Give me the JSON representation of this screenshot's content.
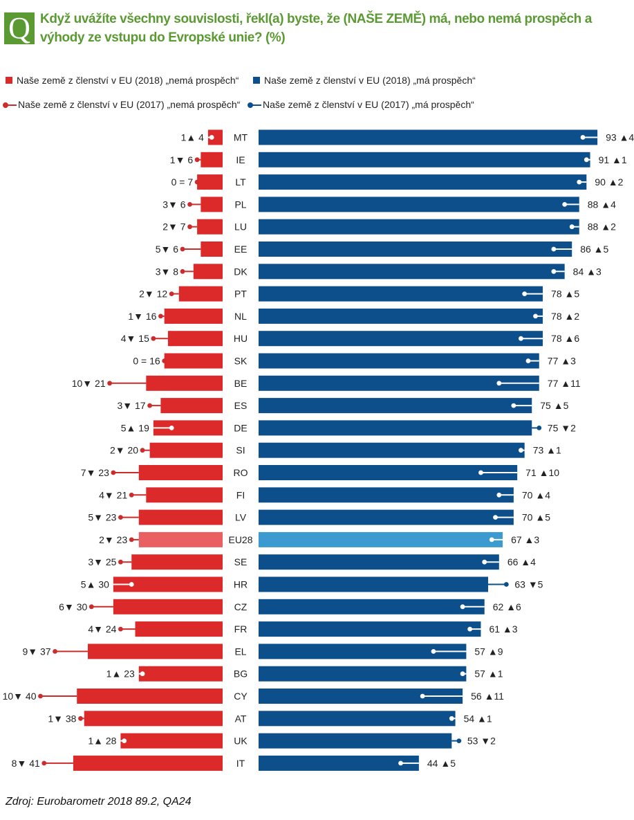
{
  "header": {
    "badge": "Q",
    "title": "Když uvážíte všechny souvislosti, řekl(a) byste, že (NAŠE ZEMĚ) má, nebo nemá prospěch a výhody ze vstupu do Evropské unie? (%)"
  },
  "colors": {
    "red": "#dc2a2a",
    "red_light": "#ea5f62",
    "blue": "#0d4f8b",
    "blue_light": "#3b9ad0",
    "dot_red": "#cc2c2c",
    "dot_blue": "#0d4f8b"
  },
  "legend": {
    "not_2018": "Naše země z členství v EU (2018) „nemá prospěch“",
    "has_2018": "Naše země z členství v EU (2018) „má prospěch“",
    "not_2017": "Naše země z členství v EU (2017) „nemá prospěch“",
    "has_2017": "Naše země z členství v EU (2017) „má prospěch“"
  },
  "chart_data": {
    "type": "bar",
    "title": "Když uvážíte všechny souvislosti, řekl(a) byste, že (NAŠE ZEMĚ) má, nebo nemá prospěch a výhody ze vstupu do Evropské unie? (%)",
    "highlight": "EU28",
    "countries": [
      {
        "code": "MT",
        "not_2018": 4,
        "not_change": "1▲",
        "not_2017": 3,
        "has_2018": 93,
        "has_change": "▲4",
        "has_2017": 89
      },
      {
        "code": "IE",
        "not_2018": 6,
        "not_change": "1▼",
        "not_2017": 7,
        "has_2018": 91,
        "has_change": "▲1",
        "has_2017": 90
      },
      {
        "code": "LT",
        "not_2018": 7,
        "not_change": "0 =",
        "not_2017": 7,
        "has_2018": 90,
        "has_change": "▲2",
        "has_2017": 88
      },
      {
        "code": "PL",
        "not_2018": 6,
        "not_change": "3▼",
        "not_2017": 9,
        "has_2018": 88,
        "has_change": "▲4",
        "has_2017": 84
      },
      {
        "code": "LU",
        "not_2018": 7,
        "not_change": "2▼",
        "not_2017": 9,
        "has_2018": 88,
        "has_change": "▲2",
        "has_2017": 86
      },
      {
        "code": "EE",
        "not_2018": 6,
        "not_change": "5▼",
        "not_2017": 11,
        "has_2018": 86,
        "has_change": "▲5",
        "has_2017": 81
      },
      {
        "code": "DK",
        "not_2018": 8,
        "not_change": "3▼",
        "not_2017": 11,
        "has_2018": 84,
        "has_change": "▲3",
        "has_2017": 81
      },
      {
        "code": "PT",
        "not_2018": 12,
        "not_change": "2▼",
        "not_2017": 14,
        "has_2018": 78,
        "has_change": "▲5",
        "has_2017": 73
      },
      {
        "code": "NL",
        "not_2018": 16,
        "not_change": "1▼",
        "not_2017": 17,
        "has_2018": 78,
        "has_change": "▲2",
        "has_2017": 76
      },
      {
        "code": "HU",
        "not_2018": 15,
        "not_change": "4▼",
        "not_2017": 19,
        "has_2018": 78,
        "has_change": "▲6",
        "has_2017": 72
      },
      {
        "code": "SK",
        "not_2018": 16,
        "not_change": "0 =",
        "not_2017": 16,
        "has_2018": 77,
        "has_change": "▲3",
        "has_2017": 74
      },
      {
        "code": "BE",
        "not_2018": 21,
        "not_change": "10▼",
        "not_2017": 31,
        "has_2018": 77,
        "has_change": "▲11",
        "has_2017": 66
      },
      {
        "code": "ES",
        "not_2018": 17,
        "not_change": "3▼",
        "not_2017": 20,
        "has_2018": 75,
        "has_change": "▲5",
        "has_2017": 70
      },
      {
        "code": "DE",
        "not_2018": 19,
        "not_change": "5▲",
        "not_2017": 14,
        "has_2018": 75,
        "has_change": "▼2",
        "has_2017": 77
      },
      {
        "code": "SI",
        "not_2018": 20,
        "not_change": "2▼",
        "not_2017": 22,
        "has_2018": 73,
        "has_change": "▲1",
        "has_2017": 72
      },
      {
        "code": "RO",
        "not_2018": 23,
        "not_change": "7▼",
        "not_2017": 30,
        "has_2018": 71,
        "has_change": "▲10",
        "has_2017": 61
      },
      {
        "code": "FI",
        "not_2018": 21,
        "not_change": "4▼",
        "not_2017": 25,
        "has_2018": 70,
        "has_change": "▲4",
        "has_2017": 66
      },
      {
        "code": "LV",
        "not_2018": 23,
        "not_change": "5▼",
        "not_2017": 28,
        "has_2018": 70,
        "has_change": "▲5",
        "has_2017": 65
      },
      {
        "code": "EU28",
        "not_2018": 23,
        "not_change": "2▼",
        "not_2017": 25,
        "has_2018": 67,
        "has_change": "▲3",
        "has_2017": 64
      },
      {
        "code": "SE",
        "not_2018": 25,
        "not_change": "3▼",
        "not_2017": 28,
        "has_2018": 66,
        "has_change": "▲4",
        "has_2017": 62
      },
      {
        "code": "HR",
        "not_2018": 30,
        "not_change": "5▲",
        "not_2017": 25,
        "has_2018": 63,
        "has_change": "▼5",
        "has_2017": 68
      },
      {
        "code": "CZ",
        "not_2018": 30,
        "not_change": "6▼",
        "not_2017": 36,
        "has_2018": 62,
        "has_change": "▲6",
        "has_2017": 56
      },
      {
        "code": "FR",
        "not_2018": 24,
        "not_change": "4▼",
        "not_2017": 28,
        "has_2018": 61,
        "has_change": "▲3",
        "has_2017": 58
      },
      {
        "code": "EL",
        "not_2018": 37,
        "not_change": "9▼",
        "not_2017": 46,
        "has_2018": 57,
        "has_change": "▲9",
        "has_2017": 48
      },
      {
        "code": "BG",
        "not_2018": 23,
        "not_change": "1▲",
        "not_2017": 22,
        "has_2018": 57,
        "has_change": "▲1",
        "has_2017": 56
      },
      {
        "code": "CY",
        "not_2018": 40,
        "not_change": "10▼",
        "not_2017": 50,
        "has_2018": 56,
        "has_change": "▲11",
        "has_2017": 45
      },
      {
        "code": "AT",
        "not_2018": 38,
        "not_change": "1▼",
        "not_2017": 39,
        "has_2018": 54,
        "has_change": "▲1",
        "has_2017": 53
      },
      {
        "code": "UK",
        "not_2018": 28,
        "not_change": "1▲",
        "not_2017": 27,
        "has_2018": 53,
        "has_change": "▼2",
        "has_2017": 55
      },
      {
        "code": "IT",
        "not_2018": 41,
        "not_change": "8▼",
        "not_2017": 49,
        "has_2018": 44,
        "has_change": "▲5",
        "has_2017": 39
      }
    ]
  },
  "source": "Zdroj: Eurobarometr 2018 89.2, QA24"
}
